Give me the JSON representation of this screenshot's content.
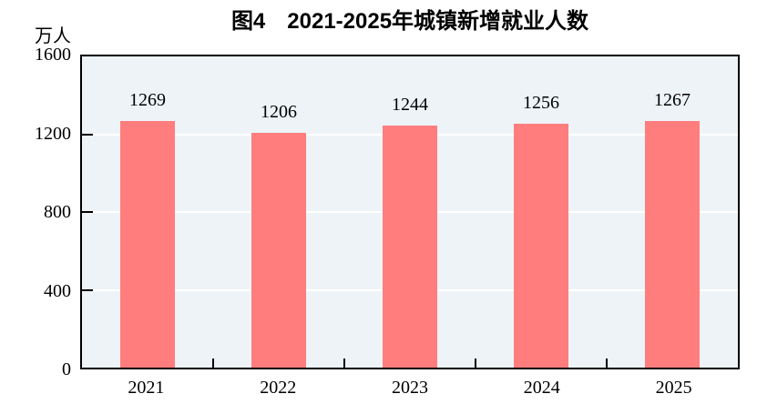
{
  "chart_data": {
    "type": "bar",
    "title": "图4　2021-2025年城镇新增就业人数",
    "unit_label": "万人",
    "categories": [
      "2021",
      "2022",
      "2023",
      "2024",
      "2025"
    ],
    "values": [
      1269,
      1206,
      1244,
      1256,
      1267
    ],
    "xlabel": "",
    "ylabel": "万人",
    "ylim": [
      0,
      1600
    ],
    "yticks": [
      0,
      400,
      800,
      1200,
      1600
    ],
    "grid": true,
    "legend_position": "none",
    "colors": {
      "bar": "#ff7d7d",
      "plot_background": "#edf3f7",
      "gridline": "#ffffff",
      "axis": "#000000",
      "text": "#000000",
      "page_background": "#ffffff"
    }
  }
}
